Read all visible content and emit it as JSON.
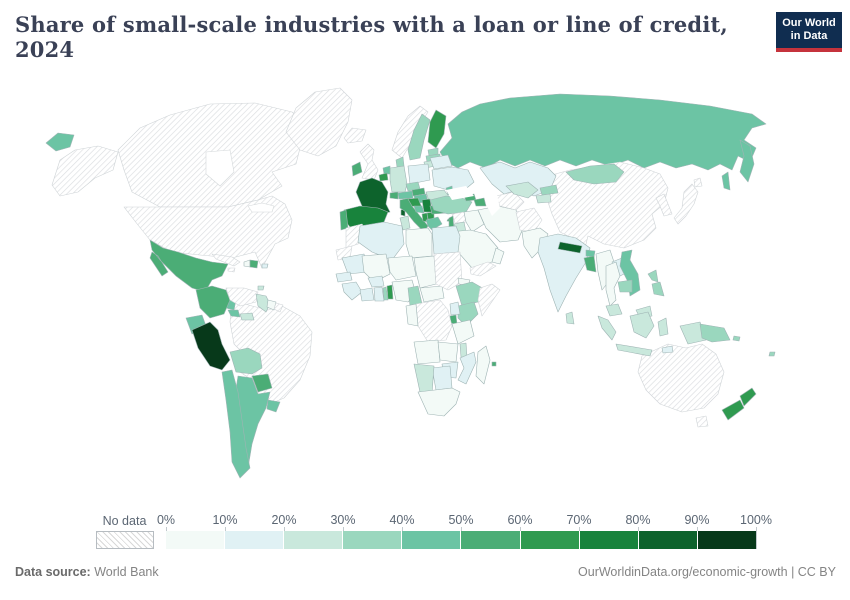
{
  "header": {
    "title": "Share of small-scale industries with a loan or line of credit, 2024",
    "logo": {
      "line1": "Our World",
      "line2": "in Data",
      "bg_color": "#102d50",
      "accent_color": "#c5333c"
    }
  },
  "legend": {
    "no_data_label": "No data",
    "ticks": [
      "0%",
      "10%",
      "20%",
      "30%",
      "40%",
      "50%",
      "60%",
      "70%",
      "80%",
      "90%",
      "100%"
    ]
  },
  "footer": {
    "source_label": "Data source:",
    "source_value": "World Bank",
    "right_text": "OurWorldinData.org/economic-growth | CC BY"
  },
  "chart_data": {
    "type": "choropleth_map",
    "title": "Share of small-scale industries with a loan or line of credit, 2024",
    "unit": "%",
    "legend_ranges": [
      "0-10%",
      "10-20%",
      "20-30%",
      "30-40%",
      "40-50%",
      "50-60%",
      "60-70%",
      "70-80%",
      "80-90%",
      "90-100%"
    ],
    "palette": [
      "#f3faf7",
      "#e0f1f4",
      "#c9e8dc",
      "#9ad7be",
      "#6cc4a4",
      "#4bad76",
      "#2f9a50",
      "#18833c",
      "#0d632c",
      "#07391a"
    ],
    "no_data_color": "pattern-hatch",
    "regions": {
      "canada": "No data",
      "united-states": "No data",
      "greenland": "No data",
      "iceland": "No data",
      "mexico": "50-60%",
      "guatemala": "30-40%",
      "honduras": "50-60%",
      "nicaragua": "40-50%",
      "costa-rica": "40-50%",
      "panama": "20-30%",
      "cuba": "No data",
      "jamaica": "No data",
      "haiti": "0-10%",
      "dominican-republic": "50-60%",
      "puerto-rico": "10-20%",
      "trinidad-and-tobago": "20-30%",
      "colombia": "50-60%",
      "venezuela": "No data",
      "guyana": "20-30%",
      "suriname": "0-10%",
      "french-guiana": "No data",
      "ecuador": "40-50%",
      "peru": "90-100%",
      "brazil": "No data",
      "bolivia": "30-40%",
      "paraguay": "50-60%",
      "chile": "40-50%",
      "argentina": "40-50%",
      "uruguay": "40-50%",
      "united-kingdom": "No data",
      "ireland": "50-60%",
      "norway": "No data",
      "sweden": "30-40%",
      "finland": "60-70%",
      "estonia": "30-40%",
      "latvia": "30-40%",
      "lithuania": "20-30%",
      "denmark": "30-40%",
      "netherlands": "40-50%",
      "belgium": "60-70%",
      "germany": "20-30%",
      "poland": "10-20%",
      "czechia": "30-40%",
      "slovakia": "50-60%",
      "austria": "40-50%",
      "switzerland": "50-60%",
      "france": "80-90%",
      "spain": "70-80%",
      "portugal": "50-60%",
      "italy": "50-60%",
      "croatia": "60-70%",
      "bosnia-and-herzegovina": "40-50%",
      "serbia": "70-80%",
      "albania": "60-70%",
      "north-macedonia": "60-70%",
      "greece": "40-50%",
      "bulgaria": "50-60%",
      "romania": "20-30%",
      "hungary": "40-50%",
      "moldova": "40-50%",
      "ukraine": "10-20%",
      "belarus": "10-20%",
      "russia": "40-50%",
      "kazakhstan": "10-20%",
      "turkey": "30-40%",
      "cyprus": "50-60%",
      "georgia": "50-60%",
      "azerbaijan": "50-60%",
      "syria": "No data",
      "lebanon": "50-60%",
      "jordan": "20-30%",
      "iraq": "0-10%",
      "saudi-arabia": "0-10%",
      "yemen": "No data",
      "oman": "0-10%",
      "iran": "0-10%",
      "afghanistan": "No data",
      "turkmenistan": "No data",
      "uzbekistan": "20-30%",
      "kyrgyzstan": "30-40%",
      "tajikistan": "20-30%",
      "pakistan": "0-10%",
      "india": "10-20%",
      "nepal": "80-90%",
      "bhutan": "40-50%",
      "bangladesh": "50-60%",
      "sri-lanka": "20-30%",
      "china": "No data",
      "mongolia": "30-40%",
      "south-korea": "No data",
      "japan": "No data",
      "myanmar": "0-10%",
      "laos": "10-20%",
      "vietnam": "40-50%",
      "thailand": "0-10%",
      "cambodia": "30-40%",
      "malaysia": "20-30%",
      "philippines": "30-40%",
      "indonesia": "20-30%",
      "timor": "10-20%",
      "papua-new-guinea": "30-40%",
      "solomon-islands": "30-40%",
      "fiji": "30-40%",
      "australia": "No data",
      "new-zealand": "60-70%",
      "morocco": "No data",
      "western-sahara": "No data",
      "algeria": "10-20%",
      "tunisia": "20-30%",
      "libya": "0-10%",
      "egypt": "10-20%",
      "mauritania": "10-20%",
      "senegal": "10-20%",
      "guinea": "10-20%",
      "mali": "0-10%",
      "burkina-faso": "10-20%",
      "ivory-coast": "10-20%",
      "ghana": "10-20%",
      "togo": "30-40%",
      "benin": "60-70%",
      "niger": "0-10%",
      "nigeria": "0-10%",
      "chad": "0-10%",
      "cameroon": "30-40%",
      "central-african-republic": "0-10%",
      "sudan": "No data",
      "eritrea": "0-10%",
      "ethiopia": "30-40%",
      "somalia": "No data",
      "kenya": "30-40%",
      "uganda": "10-20%",
      "rwanda": "50-60%",
      "democratic-republic-of-congo": "No data",
      "congo": "0-10%",
      "tanzania": "0-10%",
      "angola": "0-10%",
      "zambia": "0-10%",
      "malawi": "20-30%",
      "mozambique": "10-20%",
      "zimbabwe": "10-20%",
      "botswana": "10-20%",
      "namibia": "20-30%",
      "south-africa": "0-10%",
      "madagascar": "0-10%",
      "mauritius": "50-60%"
    }
  }
}
